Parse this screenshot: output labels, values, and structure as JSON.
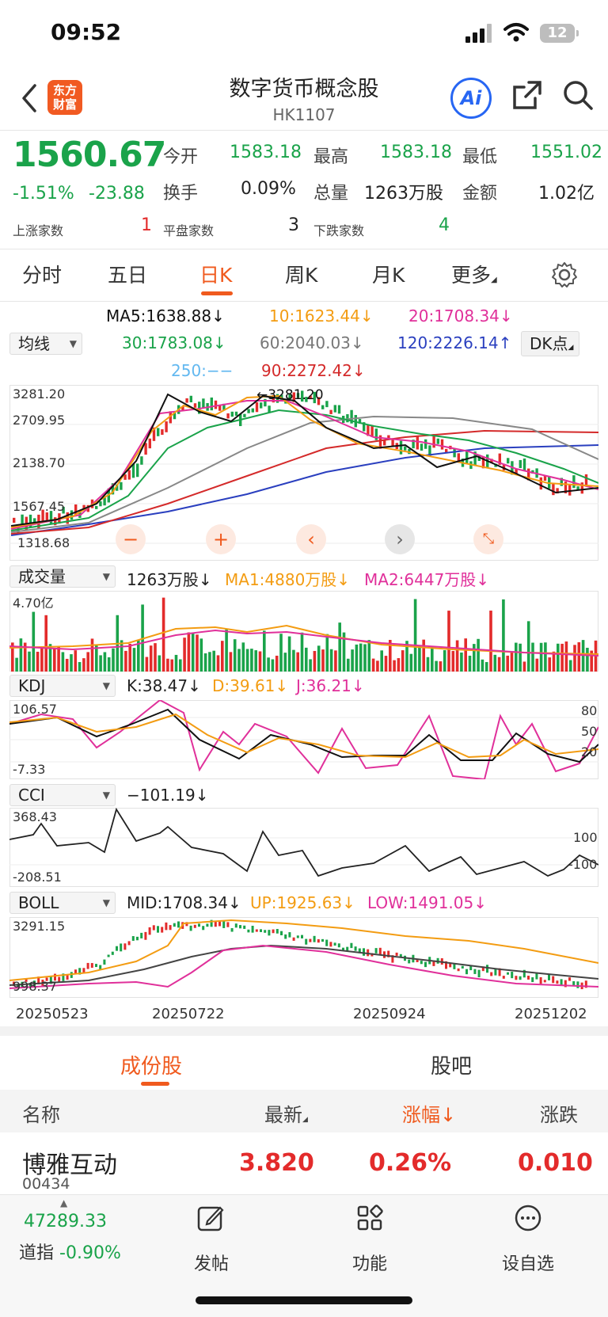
{
  "status": {
    "time": "09:52",
    "battery": "12"
  },
  "nav": {
    "title": "数字货币概念股",
    "code": "HK1107",
    "logo_line1": "东方",
    "logo_line2": "财富",
    "ai_label": "Ai"
  },
  "quote": {
    "price": "1560.67",
    "change_pct": "-1.51%",
    "change": "-23.88",
    "open_label": "今开",
    "open": "1583.18",
    "high_label": "最高",
    "high": "1583.18",
    "low_label": "最低",
    "low": "1551.02",
    "turnover_label": "换手",
    "turnover": "0.09%",
    "volume_label": "总量",
    "volume": "1263万股",
    "amount_label": "金额",
    "amount": "1.02亿",
    "up_label": "上涨家数",
    "up": "1",
    "flat_label": "平盘家数",
    "flat": "3",
    "down_label": "下跌家数",
    "down": "4"
  },
  "tabs": {
    "t1": "分时",
    "t2": "五日",
    "t3": "日K",
    "t4": "周K",
    "t5": "月K",
    "t6": "更多"
  },
  "ma": {
    "ma5": "MA5:1638.88↓",
    "ma10": "10:1623.44↓",
    "ma20": "20:1708.34↓",
    "ma30": "30:1783.08↓",
    "ma60": "60:2040.03↓",
    "ma120": "120:2226.14↑",
    "ma250": "250:−−",
    "ma90": "90:2272.42↓",
    "selector": "均线",
    "dk": "DK点"
  },
  "kline": {
    "y1": "3281.20",
    "y2": "2709.95",
    "y3": "2138.70",
    "y4": "1567.45",
    "y5": "1318.68",
    "peak": "←3281.20"
  },
  "volume": {
    "selector": "成交量",
    "val": "1263万股↓",
    "ma1": "MA1:4880万股↓",
    "ma2": "MA2:6447万股↓",
    "y1": "4.70亿"
  },
  "kdj": {
    "selector": "KDJ",
    "k": "K:38.47↓",
    "d": "D:39.61↓",
    "j": "J:36.21↓",
    "y1": "106.57",
    "y2": "-7.33",
    "r1": "80",
    "r2": "50",
    "r3": "20"
  },
  "cci": {
    "selector": "CCI",
    "val": "−101.19↓",
    "y1": "368.43",
    "y2": "-208.51",
    "r1": "100",
    "r2": "-100"
  },
  "boll": {
    "selector": "BOLL",
    "mid": "MID:1708.34↓",
    "up": "UP:1925.63↓",
    "low": "LOW:1491.05↓",
    "y1": "3291.15",
    "y2": "998.37"
  },
  "dates": {
    "d1": "20250523",
    "d2": "20250722",
    "d3": "20250924",
    "d4": "20251202"
  },
  "bottom_tabs": {
    "constituents": "成份股",
    "forum": "股吧"
  },
  "table": {
    "headers": {
      "name": "名称",
      "latest": "最新",
      "change_pct": "涨幅↓",
      "change": "涨跌"
    },
    "rows": [
      {
        "name": "博雅互动",
        "code": "00434",
        "latest": "3.820",
        "change_pct": "0.26%",
        "change": "0.010"
      }
    ]
  },
  "footer": {
    "index_val": "47289.33",
    "index_name": "道指",
    "index_chg": "-0.90%",
    "post": "发帖",
    "func": "功能",
    "watch": "设自选"
  },
  "colors": {
    "up": "#e32b2b",
    "down": "#1aa34a",
    "accent": "#f05a1e",
    "ma5": "#111111",
    "ma10": "#f39c12",
    "ma20": "#e0309a",
    "ma30": "#1aa34a",
    "ma60": "#777777",
    "ma120": "#2a3fbf",
    "ma90": "#d42a2a"
  }
}
